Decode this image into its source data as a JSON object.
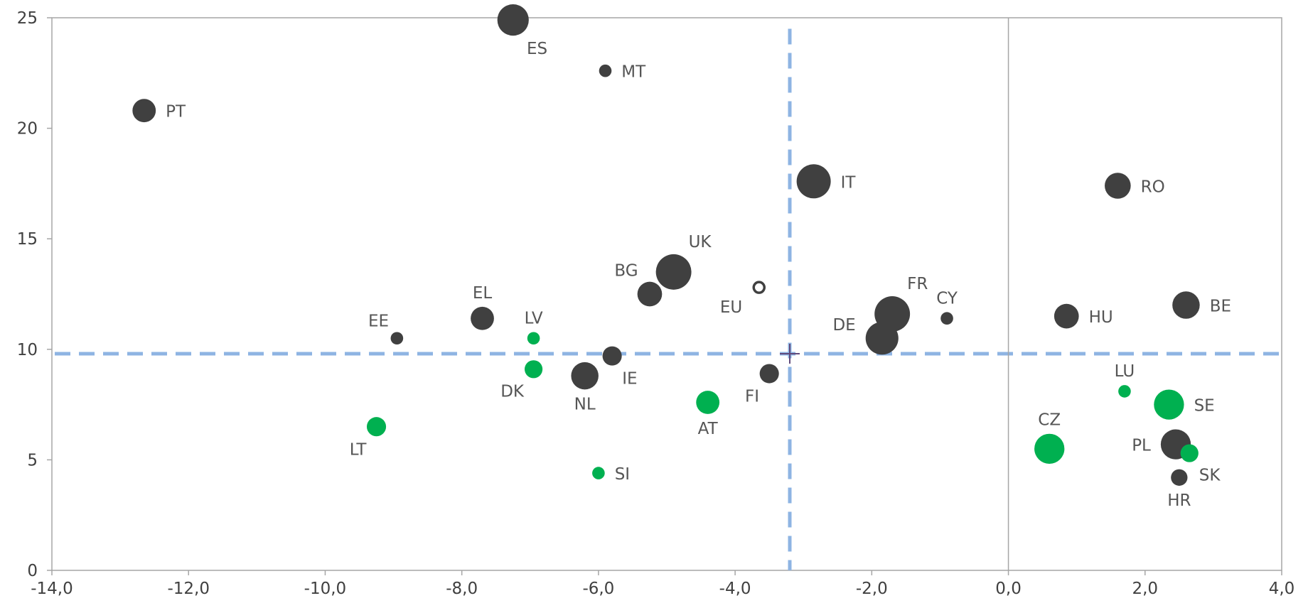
{
  "chart_data": {
    "type": "scatter",
    "title": "",
    "xlabel": "",
    "ylabel": "",
    "xlim": [
      -14,
      4
    ],
    "ylim": [
      0,
      25
    ],
    "x_ticks": [
      {
        "value": -14,
        "label": "-14,0"
      },
      {
        "value": -12,
        "label": "-12,0"
      },
      {
        "value": -10,
        "label": "-10,0"
      },
      {
        "value": -8,
        "label": "-8,0"
      },
      {
        "value": -6,
        "label": "-6,0"
      },
      {
        "value": -4,
        "label": "-4,0"
      },
      {
        "value": -2,
        "label": "-2,0"
      },
      {
        "value": 0,
        "label": "0,0"
      },
      {
        "value": 2,
        "label": "2,0"
      },
      {
        "value": 4,
        "label": "4,0"
      }
    ],
    "y_ticks": [
      {
        "value": 0,
        "label": "0"
      },
      {
        "value": 5,
        "label": "5"
      },
      {
        "value": 10,
        "label": "10"
      },
      {
        "value": 15,
        "label": "15"
      },
      {
        "value": 20,
        "label": "20"
      },
      {
        "value": 25,
        "label": "25"
      }
    ],
    "grid": false,
    "legend": "none",
    "reference_lines": {
      "vertical_x": -3.2,
      "horizontal_y": 9.8,
      "style": "dashed",
      "color": "#8eb4e3"
    },
    "colors": {
      "dark": "#404040",
      "green": "#00b050",
      "eu_outline": "#404040",
      "center_cross": "#604a7b",
      "axis": "#a6a6a6"
    },
    "points": [
      {
        "label": "ES",
        "x": -7.25,
        "y": 24.9,
        "size": 1.8,
        "color": "dark",
        "label_pos": "below-right"
      },
      {
        "label": "MT",
        "x": -5.9,
        "y": 22.6,
        "size": 0.4,
        "color": "dark",
        "label_pos": "right"
      },
      {
        "label": "PT",
        "x": -12.65,
        "y": 20.8,
        "size": 1.2,
        "color": "dark",
        "label_pos": "right"
      },
      {
        "label": "IT",
        "x": -2.85,
        "y": 17.6,
        "size": 2.0,
        "color": "dark",
        "label_pos": "right"
      },
      {
        "label": "RO",
        "x": 1.6,
        "y": 17.4,
        "size": 1.4,
        "color": "dark",
        "label_pos": "right"
      },
      {
        "label": "UK",
        "x": -4.9,
        "y": 13.5,
        "size": 2.1,
        "color": "dark",
        "label_pos": "above-right"
      },
      {
        "label": "EU",
        "x": -3.65,
        "y": 12.8,
        "size": 0.9,
        "color": "eu",
        "label_pos": "left-below"
      },
      {
        "label": "BG",
        "x": -5.25,
        "y": 12.5,
        "size": 1.3,
        "color": "dark",
        "label_pos": "above-left"
      },
      {
        "label": "BE",
        "x": 2.6,
        "y": 12.0,
        "size": 1.5,
        "color": "dark",
        "label_pos": "right"
      },
      {
        "label": "FR",
        "x": -1.7,
        "y": 11.6,
        "size": 2.1,
        "color": "dark",
        "label_pos": "above-right"
      },
      {
        "label": "HU",
        "x": 0.85,
        "y": 11.5,
        "size": 1.3,
        "color": "dark",
        "label_pos": "right"
      },
      {
        "label": "EL",
        "x": -7.7,
        "y": 11.4,
        "size": 1.2,
        "color": "dark",
        "label_pos": "above"
      },
      {
        "label": "CY",
        "x": -0.9,
        "y": 11.4,
        "size": 0.4,
        "color": "dark",
        "label_pos": "above"
      },
      {
        "label": "EE",
        "x": -8.95,
        "y": 10.5,
        "size": 0.4,
        "color": "dark",
        "label_pos": "above-left"
      },
      {
        "label": "LV",
        "x": -6.95,
        "y": 10.5,
        "size": 0.4,
        "color": "green",
        "label_pos": "above"
      },
      {
        "label": "DE",
        "x": -1.85,
        "y": 10.5,
        "size": 1.9,
        "color": "dark",
        "label_pos": "left-above"
      },
      {
        "label": "IE",
        "x": -5.8,
        "y": 9.7,
        "size": 0.9,
        "color": "dark",
        "label_pos": "below-right"
      },
      {
        "label": "DK",
        "x": -6.95,
        "y": 9.1,
        "size": 0.8,
        "color": "green",
        "label_pos": "below-left"
      },
      {
        "label": "FI",
        "x": -3.5,
        "y": 8.9,
        "size": 0.9,
        "color": "dark",
        "label_pos": "below-left"
      },
      {
        "label": "NL",
        "x": -6.2,
        "y": 8.8,
        "size": 1.5,
        "color": "dark",
        "label_pos": "below"
      },
      {
        "label": "LU",
        "x": 1.7,
        "y": 8.1,
        "size": 0.4,
        "color": "green",
        "label_pos": "above"
      },
      {
        "label": "AT",
        "x": -4.4,
        "y": 7.6,
        "size": 1.2,
        "color": "green",
        "label_pos": "below"
      },
      {
        "label": "SE",
        "x": 2.35,
        "y": 7.5,
        "size": 1.7,
        "color": "green",
        "label_pos": "right"
      },
      {
        "label": "LT",
        "x": -9.25,
        "y": 6.5,
        "size": 0.9,
        "color": "green",
        "label_pos": "below-left"
      },
      {
        "label": "PL",
        "x": 2.45,
        "y": 5.7,
        "size": 1.7,
        "color": "dark",
        "label_pos": "left"
      },
      {
        "label": "CZ",
        "x": 0.6,
        "y": 5.5,
        "size": 1.7,
        "color": "green",
        "label_pos": "above"
      },
      {
        "label": "SK",
        "x": 2.65,
        "y": 5.3,
        "size": 0.8,
        "color": "green",
        "label_pos": "below-right"
      },
      {
        "label": "SI",
        "x": -6.0,
        "y": 4.4,
        "size": 0.4,
        "color": "green",
        "label_pos": "right"
      },
      {
        "label": "HR",
        "x": 2.5,
        "y": 4.2,
        "size": 0.7,
        "color": "dark",
        "label_pos": "below"
      }
    ]
  }
}
